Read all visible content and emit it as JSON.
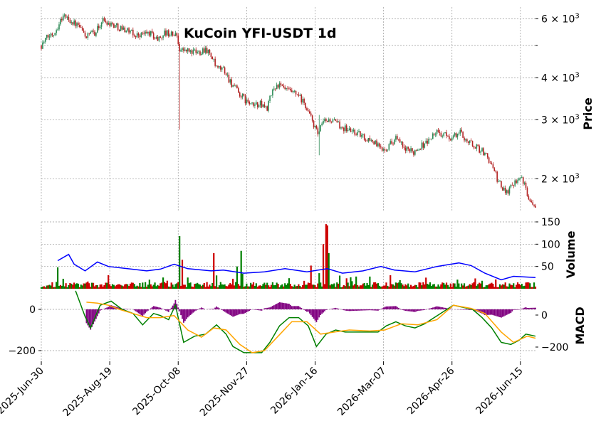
{
  "chart_data": [
    {
      "type": "candlestick",
      "title": "KuCoin YFI-USDT 1d",
      "ylabel": "Price",
      "y_scale": "log",
      "ylim": [
        1600,
        6500
      ],
      "y_ticks": [
        {
          "value": 6000,
          "base": "6 × 10",
          "exp": "3"
        },
        {
          "value": 4000,
          "base": "4 × 10",
          "exp": "3"
        },
        {
          "value": 3000,
          "base": "3 × 10",
          "exp": "3"
        },
        {
          "value": 2000,
          "base": "2 × 10",
          "exp": "3"
        }
      ],
      "x_range": [
        "2025-06-30",
        "2026-06-26"
      ],
      "x_ticks": [
        "2025-Jun-30",
        "2025-Aug-19",
        "2025-Oct-08",
        "2025-Nov-27",
        "2026-Jan-16",
        "2026-Mar-07",
        "2026-Apr-26",
        "2026-Jun-15"
      ],
      "up_color": "#2e8b57",
      "down_color": "#b22222",
      "close_path": [
        [
          "2025-06-30",
          5000
        ],
        [
          "2025-07-04",
          5250
        ],
        [
          "2025-07-10",
          5500
        ],
        [
          "2025-07-16",
          6150
        ],
        [
          "2025-07-22",
          5900
        ],
        [
          "2025-07-27",
          5700
        ],
        [
          "2025-08-02",
          5300
        ],
        [
          "2025-08-09",
          5500
        ],
        [
          "2025-08-14",
          5950
        ],
        [
          "2025-08-20",
          5800
        ],
        [
          "2025-08-26",
          5650
        ],
        [
          "2025-09-01",
          5550
        ],
        [
          "2025-09-06",
          5350
        ],
        [
          "2025-09-12",
          5400
        ],
        [
          "2025-09-17",
          5450
        ],
        [
          "2025-09-23",
          5200
        ],
        [
          "2025-09-28",
          5450
        ],
        [
          "2025-10-03",
          5400
        ],
        [
          "2025-10-07",
          5350
        ],
        [
          "2025-10-09",
          4900
        ],
        [
          "2025-10-10",
          4850
        ],
        [
          "2025-10-16",
          4800
        ],
        [
          "2025-10-22",
          4750
        ],
        [
          "2025-10-28",
          4900
        ],
        [
          "2025-11-01",
          4650
        ],
        [
          "2025-11-05",
          4250
        ],
        [
          "2025-11-10",
          4250
        ],
        [
          "2025-11-15",
          3900
        ],
        [
          "2025-11-21",
          3600
        ],
        [
          "2025-11-27",
          3400
        ],
        [
          "2025-12-01",
          3300
        ],
        [
          "2025-12-06",
          3350
        ],
        [
          "2025-12-12",
          3250
        ],
        [
          "2025-12-17",
          3750
        ],
        [
          "2025-12-20",
          3800
        ],
        [
          "2025-12-27",
          3650
        ],
        [
          "2026-01-03",
          3550
        ],
        [
          "2026-01-09",
          3300
        ],
        [
          "2026-01-15",
          2900
        ],
        [
          "2026-01-18",
          2700
        ],
        [
          "2026-01-22",
          2950
        ],
        [
          "2026-01-27",
          3000
        ],
        [
          "2026-02-02",
          2900
        ],
        [
          "2026-02-09",
          2800
        ],
        [
          "2026-02-15",
          2750
        ],
        [
          "2026-02-21",
          2650
        ],
        [
          "2026-02-27",
          2600
        ],
        [
          "2026-03-05",
          2450
        ],
        [
          "2026-03-10",
          2500
        ],
        [
          "2026-03-16",
          2650
        ],
        [
          "2026-03-22",
          2450
        ],
        [
          "2026-03-28",
          2400
        ],
        [
          "2026-04-03",
          2500
        ],
        [
          "2026-04-09",
          2600
        ],
        [
          "2026-04-14",
          2750
        ],
        [
          "2026-04-20",
          2700
        ],
        [
          "2026-04-26",
          2650
        ],
        [
          "2026-05-02",
          2750
        ],
        [
          "2026-05-07",
          2600
        ],
        [
          "2026-05-13",
          2500
        ],
        [
          "2026-05-19",
          2400
        ],
        [
          "2026-05-24",
          2250
        ],
        [
          "2026-05-29",
          2000
        ],
        [
          "2026-06-02",
          1850
        ],
        [
          "2026-06-06",
          1850
        ],
        [
          "2026-06-10",
          1950
        ],
        [
          "2026-06-15",
          2050
        ],
        [
          "2026-06-19",
          1850
        ],
        [
          "2026-06-23",
          1700
        ],
        [
          "2026-06-26",
          1680
        ]
      ],
      "spikes": [
        {
          "date": "2025-10-09",
          "high": 5050,
          "low": 2800
        },
        {
          "date": "2026-01-19",
          "high": 3100,
          "low": 2350
        }
      ]
    },
    {
      "type": "bar",
      "ylabel": "Volume",
      "ylim": [
        0,
        150
      ],
      "y_ticks": [
        50,
        100,
        150
      ],
      "bar_colors": [
        "#008000",
        "#cc0000"
      ],
      "spikes": [
        {
          "date": "2025-07-12",
          "value": 48
        },
        {
          "date": "2025-10-09",
          "value": 118
        },
        {
          "date": "2025-10-11",
          "value": 65
        },
        {
          "date": "2025-11-03",
          "value": 80
        },
        {
          "date": "2025-11-20",
          "value": 50
        },
        {
          "date": "2025-11-23",
          "value": 85
        },
        {
          "date": "2026-01-13",
          "value": 52
        },
        {
          "date": "2026-01-22",
          "value": 100
        },
        {
          "date": "2026-01-24",
          "value": 145
        },
        {
          "date": "2026-01-25",
          "value": 142
        },
        {
          "date": "2026-01-26",
          "value": 80
        }
      ],
      "moving_average": {
        "color": "#0000ff",
        "values": [
          [
            "2025-07-12",
            63
          ],
          [
            "2025-07-20",
            77
          ],
          [
            "2025-07-24",
            55
          ],
          [
            "2025-08-01",
            40
          ],
          [
            "2025-08-10",
            60
          ],
          [
            "2025-08-18",
            50
          ],
          [
            "2025-09-01",
            45
          ],
          [
            "2025-09-15",
            40
          ],
          [
            "2025-09-25",
            44
          ],
          [
            "2025-10-05",
            55
          ],
          [
            "2025-10-15",
            45
          ],
          [
            "2025-11-01",
            40
          ],
          [
            "2025-11-10",
            42
          ],
          [
            "2025-11-25",
            35
          ],
          [
            "2025-12-10",
            38
          ],
          [
            "2025-12-25",
            45
          ],
          [
            "2026-01-10",
            38
          ],
          [
            "2026-01-25",
            45
          ],
          [
            "2026-02-05",
            35
          ],
          [
            "2026-02-20",
            40
          ],
          [
            "2026-03-05",
            50
          ],
          [
            "2026-03-15",
            42
          ],
          [
            "2026-03-30",
            38
          ],
          [
            "2026-04-15",
            50
          ],
          [
            "2026-05-01",
            58
          ],
          [
            "2026-05-10",
            52
          ],
          [
            "2026-05-20",
            35
          ],
          [
            "2026-06-01",
            20
          ],
          [
            "2026-06-10",
            28
          ],
          [
            "2026-06-26",
            25
          ]
        ]
      }
    },
    {
      "type": "macd",
      "ylabel": "MACD",
      "left_ticks": [
        0,
        -200
      ],
      "right_ticks": [
        0,
        -200
      ],
      "histogram_color": "#800080",
      "macd_color": "#008000",
      "signal_color": "#ffa500",
      "macd": [
        [
          "2025-07-25",
          90
        ],
        [
          "2025-08-01",
          -35
        ],
        [
          "2025-08-05",
          -90
        ],
        [
          "2025-08-12",
          20
        ],
        [
          "2025-08-20",
          40
        ],
        [
          "2025-08-28",
          0
        ],
        [
          "2025-09-05",
          -20
        ],
        [
          "2025-09-12",
          -75
        ],
        [
          "2025-09-20",
          -20
        ],
        [
          "2025-09-25",
          -30
        ],
        [
          "2025-10-01",
          -50
        ],
        [
          "2025-10-06",
          20
        ],
        [
          "2025-10-12",
          -160
        ],
        [
          "2025-10-20",
          -130
        ],
        [
          "2025-10-28",
          -120
        ],
        [
          "2025-11-05",
          -75
        ],
        [
          "2025-11-12",
          -120
        ],
        [
          "2025-11-17",
          -180
        ],
        [
          "2025-11-25",
          -210
        ],
        [
          "2025-12-01",
          -210
        ],
        [
          "2025-12-08",
          -210
        ],
        [
          "2025-12-14",
          -160
        ],
        [
          "2025-12-21",
          -80
        ],
        [
          "2025-12-28",
          -40
        ],
        [
          "2026-01-04",
          -40
        ],
        [
          "2026-01-11",
          -80
        ],
        [
          "2026-01-17",
          -180
        ],
        [
          "2026-01-24",
          -120
        ],
        [
          "2026-01-31",
          -100
        ],
        [
          "2026-02-07",
          -110
        ],
        [
          "2026-02-15",
          -110
        ],
        [
          "2026-02-24",
          -110
        ],
        [
          "2026-03-03",
          -110
        ],
        [
          "2026-03-09",
          -80
        ],
        [
          "2026-03-16",
          -60
        ],
        [
          "2026-03-23",
          -80
        ],
        [
          "2026-03-30",
          -90
        ],
        [
          "2026-04-06",
          -70
        ],
        [
          "2026-04-13",
          -40
        ],
        [
          "2026-04-20",
          -10
        ],
        [
          "2026-04-27",
          20
        ],
        [
          "2026-05-04",
          10
        ],
        [
          "2026-05-11",
          0
        ],
        [
          "2026-05-18",
          -40
        ],
        [
          "2026-05-25",
          -90
        ],
        [
          "2026-06-01",
          -160
        ],
        [
          "2026-06-08",
          -170
        ],
        [
          "2026-06-14",
          -150
        ],
        [
          "2026-06-19",
          -120
        ],
        [
          "2026-06-26",
          -130
        ]
      ],
      "signal": [
        [
          "2025-08-02",
          35
        ],
        [
          "2025-08-10",
          30
        ],
        [
          "2025-08-18",
          20
        ],
        [
          "2025-08-26",
          0
        ],
        [
          "2025-09-05",
          -20
        ],
        [
          "2025-09-15",
          -40
        ],
        [
          "2025-09-25",
          -40
        ],
        [
          "2025-10-05",
          -30
        ],
        [
          "2025-10-15",
          -100
        ],
        [
          "2025-10-25",
          -135
        ],
        [
          "2025-11-03",
          -90
        ],
        [
          "2025-11-12",
          -100
        ],
        [
          "2025-11-22",
          -170
        ],
        [
          "2025-12-01",
          -210
        ],
        [
          "2025-12-10",
          -200
        ],
        [
          "2025-12-20",
          -130
        ],
        [
          "2025-12-30",
          -60
        ],
        [
          "2026-01-10",
          -60
        ],
        [
          "2026-01-20",
          -120
        ],
        [
          "2026-01-30",
          -110
        ],
        [
          "2026-02-10",
          -100
        ],
        [
          "2026-02-25",
          -105
        ],
        [
          "2026-03-08",
          -100
        ],
        [
          "2026-03-20",
          -70
        ],
        [
          "2026-04-01",
          -75
        ],
        [
          "2026-04-15",
          -50
        ],
        [
          "2026-04-27",
          20
        ],
        [
          "2026-05-10",
          5
        ],
        [
          "2026-05-20",
          -20
        ],
        [
          "2026-06-01",
          -110
        ],
        [
          "2026-06-10",
          -160
        ],
        [
          "2026-06-20",
          -130
        ],
        [
          "2026-06-26",
          -140
        ]
      ]
    }
  ]
}
